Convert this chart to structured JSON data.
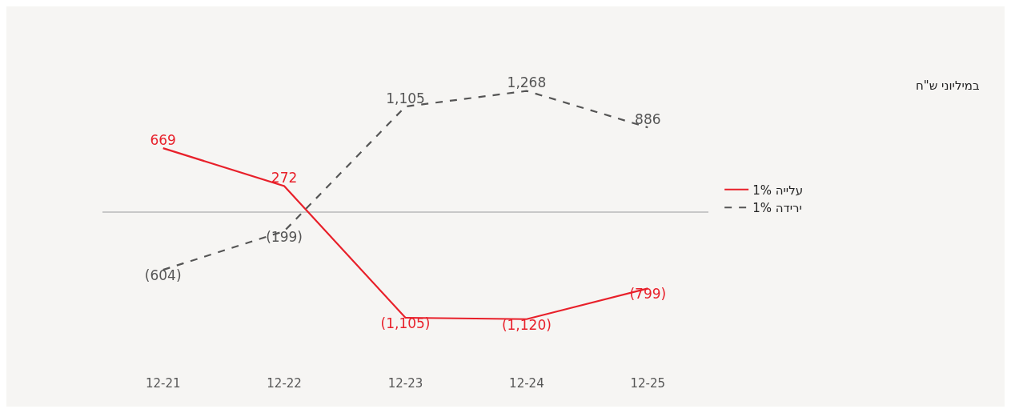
{
  "chart_data": {
    "type": "line",
    "categories": [
      "12-21",
      "12-22",
      "12-23",
      "12-24",
      "12-25"
    ],
    "series": [
      {
        "name": "עלייה 1%",
        "color": "#e8202a",
        "line_style": "solid",
        "values": [
          669,
          272,
          -1105,
          -1120,
          -799
        ],
        "value_labels": [
          "669",
          "272",
          "(1,105)",
          "(1,120)",
          "(799)"
        ]
      },
      {
        "name": "ירידה 1%",
        "color": "#555555",
        "line_style": "dashed",
        "values": [
          -604,
          -199,
          1105,
          1268,
          886
        ],
        "value_labels": [
          "(604)",
          "(199)",
          "1,105",
          "1,268",
          "886"
        ]
      }
    ],
    "legend": "right",
    "grid": false,
    "annotations": [
      "במיליוני ש\"ח"
    ]
  }
}
